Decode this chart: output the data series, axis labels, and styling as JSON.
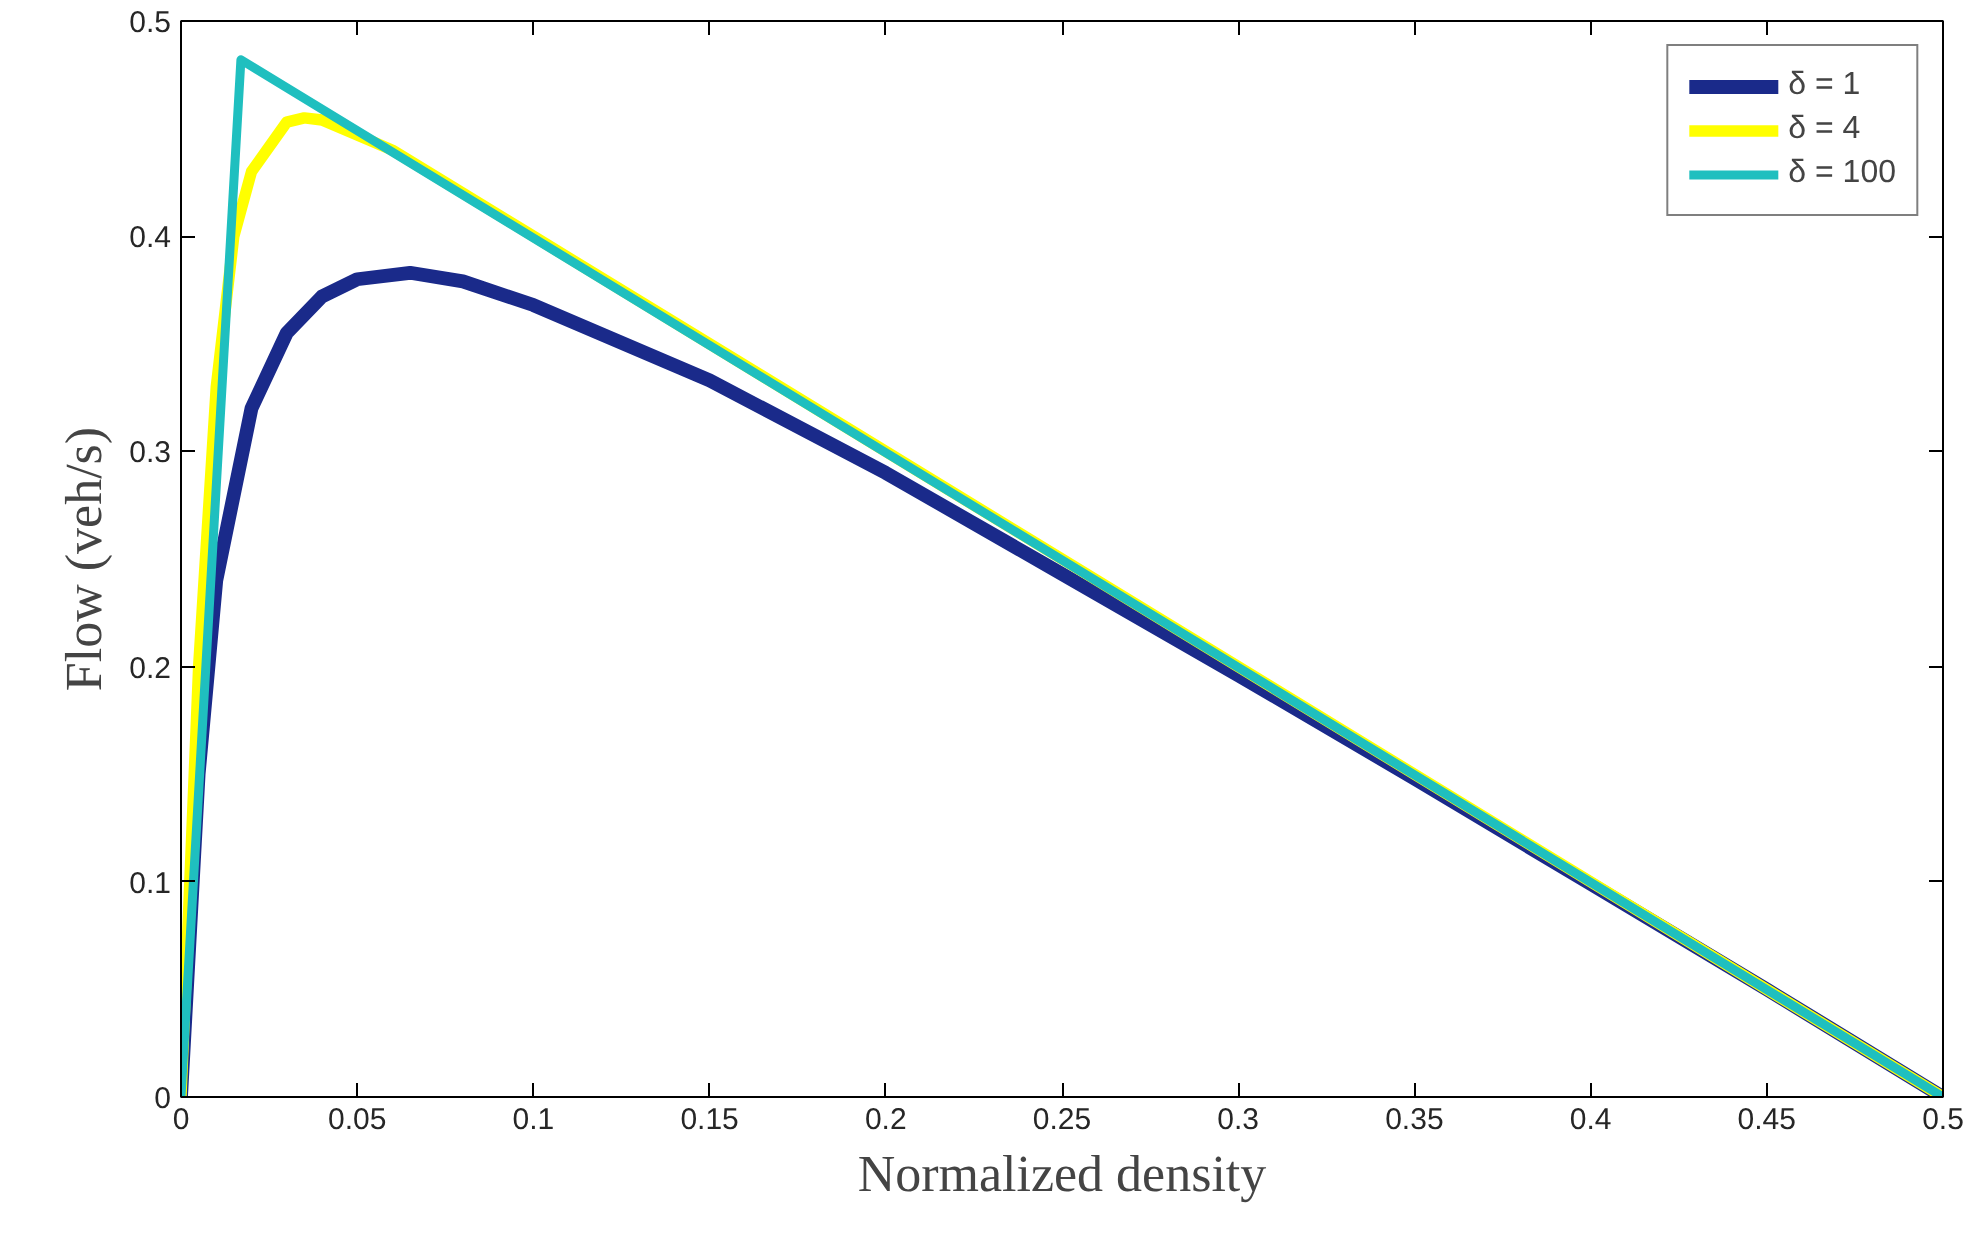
{
  "chart_data": {
    "type": "line",
    "xlabel": "Normalized density",
    "ylabel": "Flow (veh/s)",
    "xlim": [
      0,
      0.5
    ],
    "ylim": [
      0,
      0.5
    ],
    "xticks": [
      0,
      0.05,
      0.1,
      0.15,
      0.2,
      0.25,
      0.3,
      0.35,
      0.4,
      0.45,
      0.5
    ],
    "yticks": [
      0,
      0.1,
      0.2,
      0.3,
      0.4,
      0.5
    ],
    "grid": false,
    "legend": "top right",
    "line_style": "solid",
    "series": [
      {
        "name": "δ = 1",
        "color": "#1a2a8a",
        "x": [
          0,
          0.005,
          0.01,
          0.02,
          0.03,
          0.04,
          0.05,
          0.065,
          0.08,
          0.1,
          0.15,
          0.2,
          0.25,
          0.3,
          0.35,
          0.4,
          0.45,
          0.5
        ],
        "values": [
          0,
          0.15,
          0.24,
          0.32,
          0.355,
          0.372,
          0.38,
          0.383,
          0.379,
          0.368,
          0.333,
          0.29,
          0.243,
          0.196,
          0.148,
          0.099,
          0.05,
          0
        ]
      },
      {
        "name": "δ = 4",
        "color": "#ffff00",
        "x": [
          0,
          0.005,
          0.01,
          0.015,
          0.02,
          0.03,
          0.035,
          0.04,
          0.05,
          0.06,
          0.07,
          0.1,
          0.5
        ],
        "values": [
          0,
          0.2,
          0.33,
          0.4,
          0.43,
          0.453,
          0.455,
          0.454,
          0.447,
          0.44,
          0.43,
          0.4,
          0
        ]
      },
      {
        "name": "δ = 100",
        "color": "#1fbfbf",
        "x": [
          0,
          0.017,
          0.5
        ],
        "values": [
          0,
          0.482,
          0
        ]
      }
    ]
  }
}
